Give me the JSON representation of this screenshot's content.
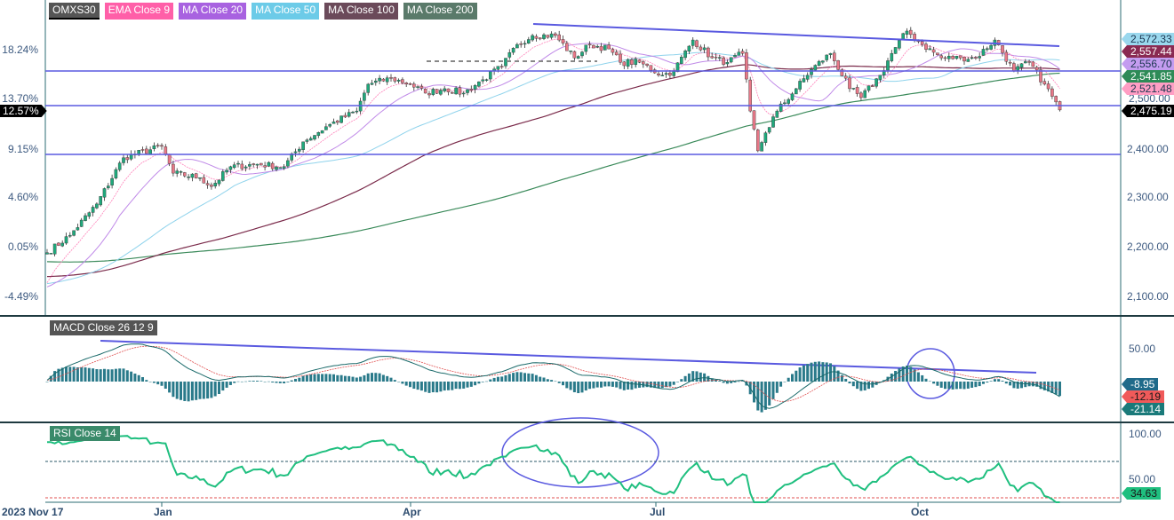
{
  "legend": [
    {
      "label": "OMXS30",
      "color": "#555555"
    },
    {
      "label": "EMA Close 9",
      "color": "#ff5fa8"
    },
    {
      "label": "MA Close 20",
      "color": "#a862e0"
    },
    {
      "label": "MA Close 50",
      "color": "#6ccbe8"
    },
    {
      "label": "MA Close 100",
      "color": "#6b4a5a"
    },
    {
      "label": "MA Close 200",
      "color": "#5a7a6a"
    }
  ],
  "panels": {
    "macd_title": "MACD Close 26 12 9",
    "rsi_title": "RSI Close 14"
  },
  "price_axis": [
    "2,500.00",
    "2,400.00",
    "2,300.00",
    "2,200.00",
    "2,100.00"
  ],
  "percent_axis": [
    "18.24%",
    "13.70%",
    "9.15%",
    "4.60%",
    "0.05%",
    "-4.49%"
  ],
  "current_percent": "12.57%",
  "price_tags": [
    {
      "label": "2,572.33",
      "bg": "#9ad8ee",
      "fg": "#1a3550"
    },
    {
      "label": "2,557.44",
      "bg": "#8a2a52",
      "fg": "#ffffff"
    },
    {
      "label": "2,556.70",
      "bg": "#c49cf0",
      "fg": "#1a3550"
    },
    {
      "label": "2,541.85",
      "bg": "#2e8b57",
      "fg": "#ffffff"
    },
    {
      "label": "2,521.48",
      "bg": "#ff9ec4",
      "fg": "#1a3550"
    },
    {
      "label": "2,475.19",
      "bg": "#000000",
      "fg": "#ffffff"
    }
  ],
  "macd_axis": [
    "50.00"
  ],
  "macd_tags": [
    {
      "label": "-8.95",
      "bg": "#1f6a8a",
      "fg": "#ffffff"
    },
    {
      "label": "-12.19",
      "bg": "#f05a5a",
      "fg": "#1a1a1a"
    },
    {
      "label": "-21.14",
      "bg": "#1a7a7a",
      "fg": "#ffffff"
    }
  ],
  "rsi_axis": [
    "100.00",
    "50.00"
  ],
  "rsi_tag": {
    "label": "34.63",
    "bg": "#1fbf7f",
    "fg": "#1a1a1a"
  },
  "x_axis": [
    "2023 Nov 17",
    "Jan",
    "Apr",
    "Jul",
    "Oct"
  ],
  "chart_data": {
    "type": "candlestick",
    "title": "OMXS30",
    "close_keypoints": [
      [
        0,
        2188
      ],
      [
        6,
        2223
      ],
      [
        13,
        2286
      ],
      [
        20,
        2379
      ],
      [
        30,
        2402
      ],
      [
        33,
        2348
      ],
      [
        40,
        2339
      ],
      [
        43,
        2321
      ],
      [
        48,
        2361
      ],
      [
        55,
        2366
      ],
      [
        62,
        2361
      ],
      [
        67,
        2411
      ],
      [
        74,
        2446
      ],
      [
        81,
        2473
      ],
      [
        84,
        2527
      ],
      [
        90,
        2539
      ],
      [
        95,
        2527
      ],
      [
        99,
        2509
      ],
      [
        104,
        2518
      ],
      [
        109,
        2509
      ],
      [
        114,
        2536
      ],
      [
        119,
        2563
      ],
      [
        123,
        2607
      ],
      [
        127,
        2625
      ],
      [
        133,
        2625
      ],
      [
        138,
        2580
      ],
      [
        142,
        2607
      ],
      [
        147,
        2598
      ],
      [
        150,
        2571
      ],
      [
        155,
        2571
      ],
      [
        161,
        2545
      ],
      [
        164,
        2554
      ],
      [
        169,
        2616
      ],
      [
        174,
        2580
      ],
      [
        178,
        2571
      ],
      [
        182,
        2589
      ],
      [
        184,
        2473
      ],
      [
        186,
        2393
      ],
      [
        188,
        2429
      ],
      [
        191,
        2473
      ],
      [
        196,
        2518
      ],
      [
        200,
        2557
      ],
      [
        205,
        2589
      ],
      [
        210,
        2518
      ],
      [
        213,
        2500
      ],
      [
        218,
        2545
      ],
      [
        221,
        2589
      ],
      [
        225,
        2634
      ],
      [
        229,
        2607
      ],
      [
        234,
        2580
      ],
      [
        239,
        2580
      ],
      [
        243,
        2580
      ],
      [
        248,
        2616
      ],
      [
        253,
        2554
      ],
      [
        257,
        2571
      ],
      [
        261,
        2527
      ],
      [
        265,
        2475.19
      ]
    ],
    "price_range": [
      2075,
      2680
    ],
    "last_close": 2475.19,
    "horizontal_levels": [
      2558,
      2485,
      2390
    ],
    "indicators": {
      "ema": 9,
      "ma": [
        20,
        50,
        100,
        200
      ],
      "macd": [
        26,
        12,
        9
      ],
      "rsi": 14,
      "rsi_levels": [
        70,
        30
      ]
    },
    "macd_range": [
      -75,
      100
    ],
    "rsi_range": [
      25,
      110
    ]
  }
}
